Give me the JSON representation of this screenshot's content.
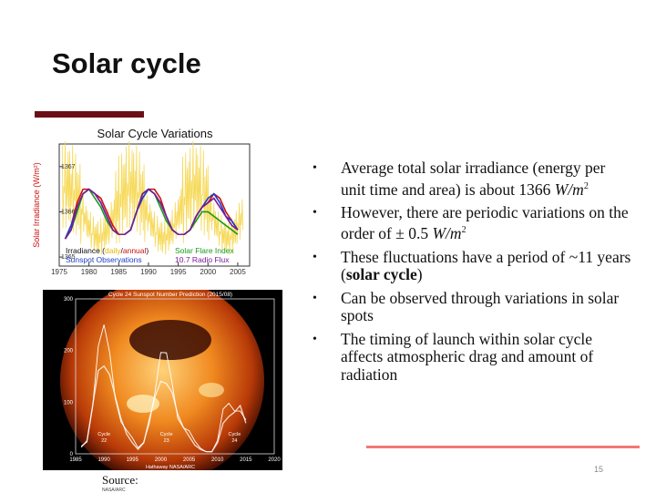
{
  "slide": {
    "title": "Solar cycle",
    "page_number": "15",
    "source_label": "Source:",
    "source_detail": "NASA/ARC",
    "accent_color": "#6b0f17",
    "line_color": "#f07878"
  },
  "bullets": [
    {
      "text": "Average total solar irradiance (energy per unit time and area) is about 1366 ",
      "em": "W/m",
      "sup": "2",
      "tail": "",
      "strong": ""
    },
    {
      "text": "However, there are periodic variations on the order of ± 0.5 ",
      "em": "W/m",
      "sup": "2",
      "tail": "",
      "strong": ""
    },
    {
      "text": "These fluctuations have a period of ~11 years (",
      "em": "",
      "sup": "",
      "strong": "solar cycle",
      "tail": ")"
    },
    {
      "text": "Can be observed through variations in solar spots",
      "em": "",
      "sup": "",
      "strong": "",
      "tail": ""
    },
    {
      "text": "The timing of launch within solar cycle affects atmospheric drag and amount of radiation",
      "em": "",
      "sup": "",
      "strong": "",
      "tail": ""
    }
  ],
  "chart_data": [
    {
      "type": "line",
      "title": "Solar Cycle Variations",
      "ylabel": "Solar Irradiance (W/m²)",
      "xlabel": "",
      "xlim": [
        1975,
        2007
      ],
      "ylim": [
        1364.8,
        1367.5
      ],
      "x_ticks": [
        "1975",
        "1980",
        "1985",
        "1990",
        "1995",
        "2000",
        "2005"
      ],
      "y_ticks": [
        "1365",
        "1366",
        "1367"
      ],
      "legend": [
        {
          "label": "Irradiance (",
          "parts": [
            {
              "t": "daily",
              "c": "#e8b800"
            },
            {
              "t": "/",
              "c": "#111111"
            },
            {
              "t": "annual",
              "c": "#cc1111"
            },
            {
              "t": ")",
              "c": "#111111"
            }
          ],
          "color": "#111111"
        },
        {
          "label": "Sunspot Observations",
          "color": "#1a3fcc"
        },
        {
          "label": "Solar Flare Index",
          "color": "#1a9a1a"
        },
        {
          "label": "10.7 Radio Flux",
          "color": "#7a1a9a"
        }
      ],
      "series": [
        {
          "color": "#cc1111",
          "x": [
            1976,
            1977,
            1978,
            1979,
            1980,
            1981,
            1982,
            1983,
            1984,
            1985,
            1986,
            1987,
            1988,
            1989,
            1990,
            1991,
            1992,
            1993,
            1994,
            1995,
            1996,
            1997,
            1998,
            1999,
            2000,
            2001,
            2002,
            2003,
            2004,
            2005
          ],
          "values": [
            1365.4,
            1365.7,
            1366.2,
            1366.5,
            1366.5,
            1366.4,
            1366.3,
            1366.0,
            1365.7,
            1365.5,
            1365.5,
            1365.6,
            1366.0,
            1366.4,
            1366.5,
            1366.5,
            1366.3,
            1365.9,
            1365.6,
            1365.5,
            1365.5,
            1365.6,
            1365.9,
            1366.1,
            1366.2,
            1366.4,
            1366.3,
            1366.0,
            1365.8,
            1365.6
          ]
        },
        {
          "color": "#1a3fcc",
          "x": [
            1976,
            1977,
            1978,
            1979,
            1980,
            1981,
            1982,
            1983,
            1984,
            1985,
            1986,
            1987,
            1988,
            1989,
            1990,
            1991,
            1992,
            1993,
            1994,
            1995,
            1996,
            1997,
            1998,
            1999,
            2000,
            2001,
            2002,
            2003,
            2004,
            2005
          ],
          "values": [
            1365.4,
            1365.7,
            1366.1,
            1366.4,
            1366.5,
            1366.4,
            1366.2,
            1365.9,
            1365.6,
            1365.5,
            1365.5,
            1365.6,
            1366.0,
            1366.3,
            1366.5,
            1366.4,
            1366.2,
            1365.9,
            1365.6,
            1365.5,
            1365.5,
            1365.6,
            1365.9,
            1366.1,
            1366.3,
            1366.4,
            1366.2,
            1365.9,
            1365.8,
            1365.6
          ]
        },
        {
          "color": "#1a9a1a",
          "x": [
            1976,
            1977,
            1978,
            1979,
            1980,
            1981,
            1982,
            1983,
            1984,
            1985,
            1986,
            1987,
            1988,
            1989,
            1990,
            1991,
            1992,
            1993,
            1994,
            1995,
            1996,
            1997,
            1998,
            1999,
            2000,
            2001,
            2002,
            2003,
            2004,
            2005
          ],
          "values": [
            1365.4,
            1365.6,
            1366.0,
            1366.4,
            1366.5,
            1366.3,
            1366.1,
            1365.8,
            1365.6,
            1365.5,
            1365.5,
            1365.6,
            1366.0,
            1366.4,
            1366.5,
            1366.4,
            1366.1,
            1365.8,
            1365.6,
            1365.5,
            1365.5,
            1365.6,
            1365.8,
            1366.0,
            1366.0,
            1365.9,
            1365.8,
            1365.7,
            1365.6,
            1365.5
          ]
        },
        {
          "color": "#7a1a9a",
          "x": [
            1976,
            1977,
            1978,
            1979,
            1980,
            1981,
            1982,
            1983,
            1984,
            1985,
            1986,
            1987,
            1988,
            1989,
            1990,
            1991,
            1992,
            1993,
            1994,
            1995,
            1996,
            1997,
            1998,
            1999,
            2000,
            2001,
            2002,
            2003,
            2004,
            2005
          ],
          "values": [
            1365.4,
            1365.6,
            1366.1,
            1366.4,
            1366.5,
            1366.4,
            1366.2,
            1365.9,
            1365.6,
            1365.5,
            1365.5,
            1365.6,
            1366.0,
            1366.4,
            1366.5,
            1366.4,
            1366.2,
            1365.9,
            1365.6,
            1365.5,
            1365.5,
            1365.6,
            1365.9,
            1366.1,
            1366.2,
            1366.3,
            1366.1,
            1365.9,
            1365.7,
            1365.6
          ]
        }
      ]
    },
    {
      "type": "line",
      "title": "Cycle 24 Sunspot Number Prediction (2015/08)",
      "xlim": [
        1985,
        2020
      ],
      "ylim": [
        0,
        300
      ],
      "x_ticks": [
        "1985",
        "1990",
        "1995",
        "2000",
        "2005",
        "2010",
        "2015",
        "2020"
      ],
      "y_ticks": [
        "0",
        "100",
        "200",
        "300"
      ],
      "footer": "Hathaway NASA/ARC",
      "cycle_labels": [
        {
          "label": "Cycle",
          "sub": "22",
          "x": 1990,
          "y": 35
        },
        {
          "label": "Cycle",
          "sub": "23",
          "x": 2001,
          "y": 35
        },
        {
          "label": "Cycle",
          "sub": "24",
          "x": 2013,
          "y": 35
        }
      ],
      "series": [
        {
          "color": "#ffffff",
          "x": [
            1986,
            1987,
            1988,
            1989,
            1990,
            1991,
            1992,
            1993,
            1994,
            1995,
            1996,
            1997,
            1998,
            1999,
            2000,
            2001,
            2002,
            2003,
            2004,
            2005,
            2006,
            2007,
            2008,
            2009,
            2010,
            2011,
            2012,
            2013,
            2014,
            2015
          ],
          "values": [
            15,
            30,
            110,
            190,
            200,
            180,
            130,
            80,
            45,
            25,
            10,
            25,
            80,
            130,
            165,
            160,
            140,
            90,
            60,
            40,
            20,
            10,
            5,
            5,
            25,
            70,
            85,
            95,
            110,
            70
          ]
        }
      ]
    }
  ]
}
